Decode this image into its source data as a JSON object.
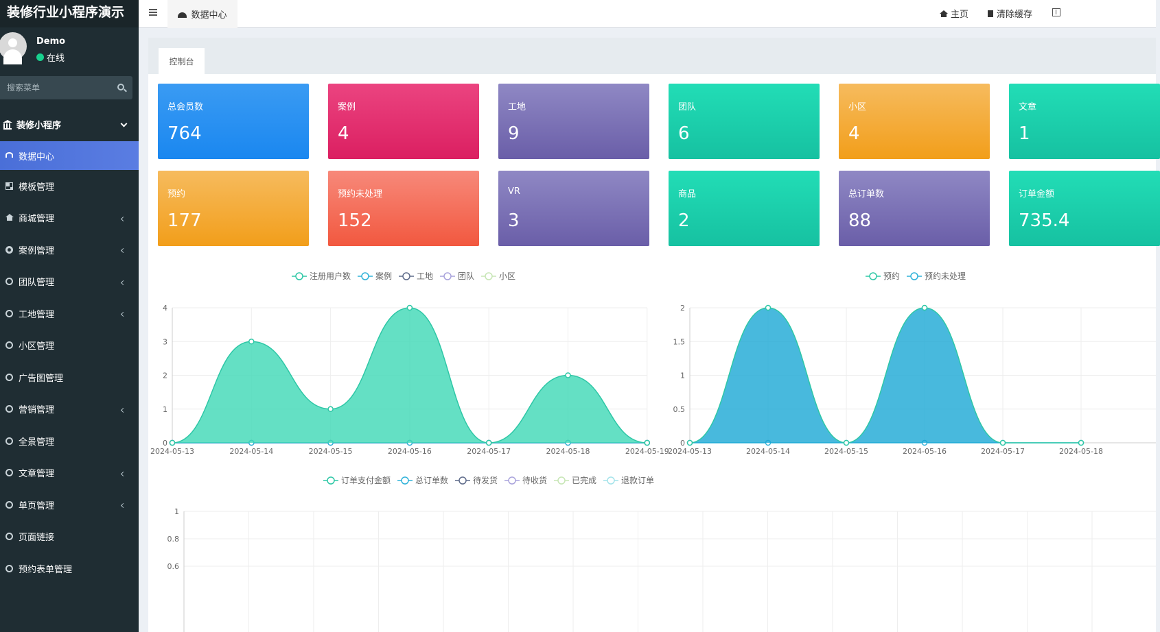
{
  "app": {
    "title": "装修行业小程序演示"
  },
  "user": {
    "name": "Demo",
    "status": "在线"
  },
  "search": {
    "placeholder": "搜索菜单"
  },
  "menu_header": {
    "label": "装修小程序"
  },
  "menu": [
    {
      "label": "数据中心",
      "icon": "dashboard-icon",
      "active": true,
      "submenu": false
    },
    {
      "label": "模板管理",
      "icon": "grid-icon",
      "submenu": false
    },
    {
      "label": "商城管理",
      "icon": "home-icon",
      "submenu": true
    },
    {
      "label": "案例管理",
      "icon": "gear-icon",
      "submenu": true
    },
    {
      "label": "团队管理",
      "icon": "circle-icon",
      "submenu": true
    },
    {
      "label": "工地管理",
      "icon": "circle-icon",
      "submenu": true
    },
    {
      "label": "小区管理",
      "icon": "circle-icon",
      "submenu": false
    },
    {
      "label": "广告图管理",
      "icon": "circle-icon",
      "submenu": false
    },
    {
      "label": "营销管理",
      "icon": "circle-icon",
      "submenu": true
    },
    {
      "label": "全景管理",
      "icon": "circle-icon",
      "submenu": false
    },
    {
      "label": "文章管理",
      "icon": "circle-icon",
      "submenu": true
    },
    {
      "label": "单页管理",
      "icon": "circle-icon",
      "submenu": true
    },
    {
      "label": "页面链接",
      "icon": "circle-icon",
      "submenu": false
    },
    {
      "label": "预约表单管理",
      "icon": "circle-icon",
      "submenu": false
    }
  ],
  "navbar": {
    "tab_label": "数据中心",
    "home_label": "主页",
    "clear_cache_label": "清除缓存"
  },
  "content_tab": {
    "label": "控制台"
  },
  "stats_row1": [
    {
      "title": "总会员数",
      "value": "764",
      "color": "blue"
    },
    {
      "title": "案例",
      "value": "4",
      "color": "pink"
    },
    {
      "title": "工地",
      "value": "9",
      "color": "purple"
    },
    {
      "title": "团队",
      "value": "6",
      "color": "teal"
    },
    {
      "title": "小区",
      "value": "4",
      "color": "orange"
    },
    {
      "title": "文章",
      "value": "1",
      "color": "teal"
    }
  ],
  "stats_row2": [
    {
      "title": "预约",
      "value": "177",
      "color": "orange"
    },
    {
      "title": "预约未处理",
      "value": "152",
      "color": "red"
    },
    {
      "title": "VR",
      "value": "3",
      "color": "purple"
    },
    {
      "title": "商品",
      "value": "2",
      "color": "teal"
    },
    {
      "title": "总订单数",
      "value": "88",
      "color": "purple"
    },
    {
      "title": "订单金额",
      "value": "735.4",
      "color": "teal"
    }
  ],
  "chart_data": [
    {
      "type": "area",
      "x": [
        "2024-05-13",
        "2024-05-14",
        "2024-05-15",
        "2024-05-16",
        "2024-05-17",
        "2024-05-18",
        "2024-05-19"
      ],
      "series": [
        {
          "name": "注册用户数",
          "values": [
            0,
            3,
            1,
            4,
            0,
            2,
            0
          ]
        },
        {
          "name": "案例",
          "values": [
            0,
            0,
            0,
            0,
            0,
            0,
            0
          ]
        },
        {
          "name": "工地",
          "values": [
            0,
            0,
            0,
            0,
            0,
            0,
            0
          ]
        },
        {
          "name": "团队",
          "values": [
            0,
            0,
            0,
            0,
            0,
            0,
            0
          ]
        },
        {
          "name": "小区",
          "values": [
            0,
            0,
            0,
            0,
            0,
            0,
            0
          ]
        }
      ],
      "ylim": [
        0,
        4
      ],
      "yticks": [
        "0",
        "1",
        "2",
        "3",
        "4"
      ],
      "legend_colors": [
        "#2ec7a6",
        "#2fb2d9",
        "#5e6b8a",
        "#a9a3dc",
        "#c7e6b5"
      ],
      "grid": true,
      "legend": "top-center"
    },
    {
      "type": "area",
      "x": [
        "2024-05-13",
        "2024-05-14",
        "2024-05-15",
        "2024-05-16",
        "2024-05-17",
        "2024-05-18"
      ],
      "series": [
        {
          "name": "预约",
          "values": [
            0,
            2,
            0,
            2,
            0,
            0
          ]
        },
        {
          "name": "预约未处理",
          "values": [
            0,
            0,
            0,
            0,
            0,
            0
          ]
        }
      ],
      "ylim": [
        0,
        2
      ],
      "yticks": [
        "0",
        "0.5",
        "1",
        "1.5",
        "2"
      ],
      "legend_colors": [
        "#2ec7a6",
        "#2fb2d9"
      ],
      "grid": true,
      "legend": "top-center"
    },
    {
      "type": "line",
      "series": [
        {
          "name": "订单支付金额",
          "values": []
        },
        {
          "name": "总订单数",
          "values": []
        },
        {
          "name": "待发货",
          "values": []
        },
        {
          "name": "待收货",
          "values": []
        },
        {
          "name": "已完成",
          "values": []
        },
        {
          "name": "退款订单",
          "values": []
        }
      ],
      "ylim": [
        0,
        1
      ],
      "yticks": [
        "0.6",
        "0.8",
        "1"
      ],
      "legend_colors": [
        "#2ec7a6",
        "#2fb2d9",
        "#5e6b8a",
        "#a9a3dc",
        "#c7e6b5",
        "#a4e3ea"
      ],
      "grid": true,
      "legend": "top-center"
    }
  ]
}
